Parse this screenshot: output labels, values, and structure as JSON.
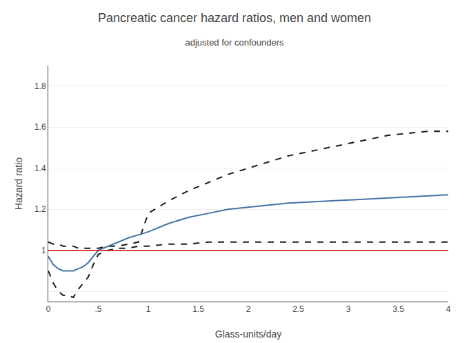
{
  "chart_data": {
    "type": "line",
    "title": "Pancreatic cancer hazard ratios, men and women",
    "subtitle": "adjusted for confounders",
    "xlabel": "Glass-units/day",
    "ylabel": "Hazard ratio",
    "xlim": [
      0,
      4
    ],
    "ylim": [
      0.75,
      1.9
    ],
    "xticks": [
      0,
      {
        "value": 0.5,
        "label": ".5"
      },
      1,
      1.5,
      2,
      2.5,
      3,
      3.5,
      4
    ],
    "yticks": [
      {
        "value": 0.8,
        "label": ""
      },
      1,
      1.2,
      1.4,
      1.6,
      1.8
    ],
    "grid": "y",
    "reference_line": {
      "value": 1.0,
      "color": "#cc0000"
    },
    "x": [
      0,
      0.05,
      0.1,
      0.15,
      0.2,
      0.25,
      0.3,
      0.35,
      0.4,
      0.45,
      0.5,
      0.6,
      0.7,
      0.8,
      0.9,
      1.0,
      1.2,
      1.4,
      1.6,
      1.8,
      2.0,
      2.2,
      2.4,
      2.6,
      2.8,
      3.0,
      3.2,
      3.4,
      3.6,
      3.8,
      4.0
    ],
    "series": [
      {
        "color": "#1a1a1a",
        "line_style": "dashed",
        "values": [
          1.04,
          1.03,
          1.03,
          1.02,
          1.02,
          1.02,
          1.01,
          1.01,
          1.01,
          1.01,
          1.01,
          1.02,
          1.02,
          1.03,
          1.04,
          1.18,
          1.24,
          1.29,
          1.33,
          1.37,
          1.4,
          1.43,
          1.46,
          1.48,
          1.5,
          1.52,
          1.54,
          1.56,
          1.57,
          1.58,
          1.58
        ]
      },
      {
        "color": "#1a1a1a",
        "line_style": "dashed",
        "values": [
          0.9,
          0.84,
          0.8,
          0.78,
          0.78,
          0.77,
          0.81,
          0.84,
          0.87,
          0.93,
          0.98,
          1.0,
          1.01,
          1.01,
          1.02,
          1.02,
          1.03,
          1.03,
          1.04,
          1.04,
          1.04,
          1.04,
          1.04,
          1.04,
          1.04,
          1.04,
          1.04,
          1.04,
          1.04,
          1.04,
          1.04
        ]
      },
      {
        "color": "#4472a8",
        "line_style": "solid",
        "values": [
          0.97,
          0.93,
          0.91,
          0.9,
          0.9,
          0.9,
          0.91,
          0.92,
          0.94,
          0.97,
          1.0,
          1.02,
          1.04,
          1.06,
          1.075,
          1.09,
          1.13,
          1.16,
          1.18,
          1.2,
          1.21,
          1.22,
          1.23,
          1.235,
          1.24,
          1.245,
          1.25,
          1.255,
          1.26,
          1.265,
          1.27
        ]
      }
    ]
  }
}
